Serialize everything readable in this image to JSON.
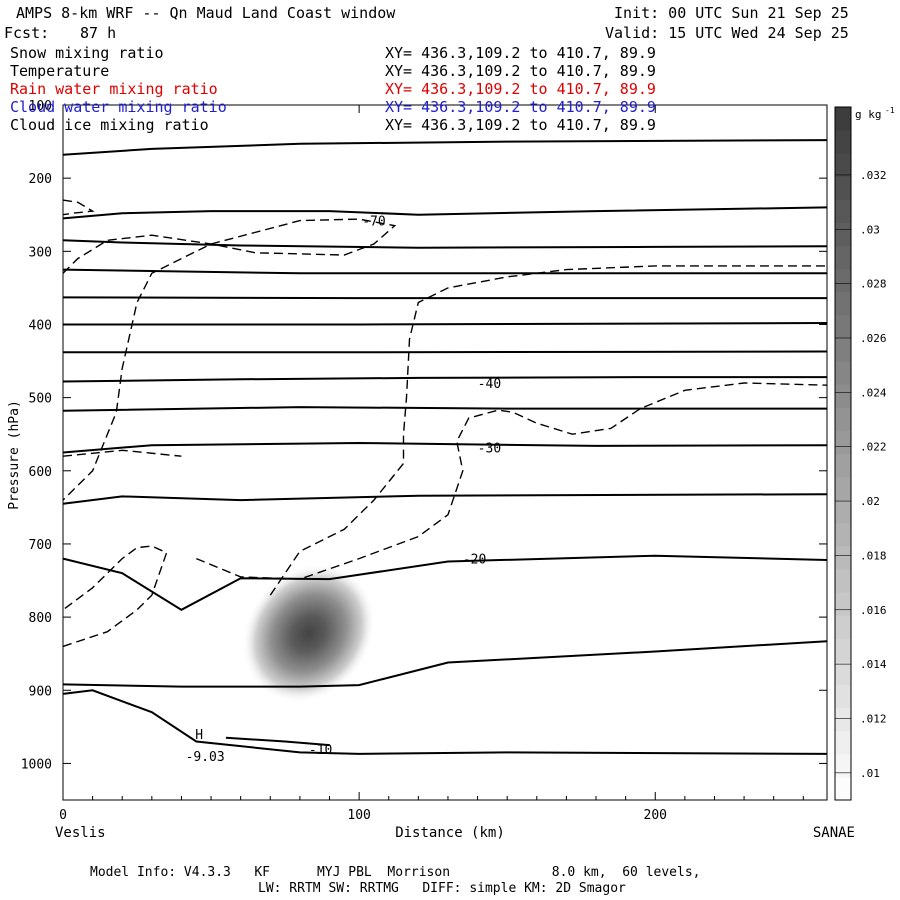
{
  "header": {
    "title": "AMPS 8-km WRF -- Qn Maud Land Coast window",
    "init": "Init: 00 UTC Sun 21 Sep 25",
    "fcst_label": "Fcst:",
    "fcst_value": "87 h",
    "valid": "Valid: 15 UTC Wed 24 Sep 25"
  },
  "fields": [
    {
      "name": "Snow mixing ratio",
      "xy": "XY= 436.3,109.2 to 410.7, 89.9",
      "color": "#000000"
    },
    {
      "name": "Temperature",
      "xy": "XY= 436.3,109.2 to 410.7, 89.9",
      "color": "#000000"
    },
    {
      "name": "Rain water mixing ratio",
      "xy": "XY= 436.3,109.2 to 410.7, 89.9",
      "color": "#e00000"
    },
    {
      "name": "Cloud water mixing ratio",
      "xy": "XY= 436.3,109.2 to 410.7, 89.9",
      "color": "#2020d0"
    },
    {
      "name": "Cloud ice mixing ratio",
      "xy": "XY= 436.3,109.2 to 410.7, 89.9",
      "color": "#000000"
    }
  ],
  "footer": {
    "line1": "Model Info: V4.3.3   KF      MYJ PBL  Morrison             8.0 km,  60 levels,",
    "line2": "LW: RRTM SW: RRTMG   DIFF: simple KM: 2D Smagor"
  },
  "chart_data": {
    "type": "contour",
    "xlabel": "Distance (km)",
    "ylabel": "Pressure (hPa)",
    "xlim": [
      0,
      258
    ],
    "ylim": [
      1050,
      100
    ],
    "x_ticks": [
      0,
      100,
      200
    ],
    "y_ticks": [
      100,
      200,
      300,
      400,
      500,
      600,
      700,
      800,
      900,
      1000
    ],
    "endpoints": {
      "left": "Veslis",
      "right": "SANAE"
    },
    "colorbar": {
      "units": "g kg",
      "units_exp": "-1",
      "ticks": [
        ".01",
        ".012",
        ".014",
        ".016",
        ".018",
        ".02",
        ".022",
        ".024",
        ".026",
        ".028",
        ".03",
        ".032"
      ],
      "min": 0.009,
      "max": 0.0345
    },
    "temperature_contours": [
      {
        "points": [
          [
            0,
            168
          ],
          [
            30,
            160
          ],
          [
            80,
            153
          ],
          [
            150,
            150
          ],
          [
            258,
            148
          ]
        ]
      },
      {
        "points": [
          [
            0,
            255
          ],
          [
            20,
            248
          ],
          [
            50,
            245
          ],
          [
            90,
            245
          ],
          [
            120,
            250
          ],
          [
            180,
            245
          ],
          [
            258,
            240
          ]
        ]
      },
      {
        "points": [
          [
            0,
            285
          ],
          [
            20,
            288
          ],
          [
            60,
            292
          ],
          [
            120,
            295
          ],
          [
            200,
            294
          ],
          [
            258,
            293
          ]
        ]
      },
      {
        "points": [
          [
            0,
            325
          ],
          [
            80,
            330
          ],
          [
            180,
            330
          ],
          [
            258,
            330
          ]
        ]
      },
      {
        "points": [
          [
            0,
            363
          ],
          [
            100,
            364
          ],
          [
            258,
            364
          ]
        ]
      },
      {
        "points": [
          [
            0,
            400
          ],
          [
            100,
            400
          ],
          [
            258,
            398
          ]
        ]
      },
      {
        "points": [
          [
            0,
            438
          ],
          [
            100,
            438
          ],
          [
            258,
            437
          ]
        ]
      },
      {
        "points": [
          [
            0,
            478
          ],
          [
            60,
            475
          ],
          [
            120,
            473
          ],
          [
            200,
            472
          ],
          [
            258,
            472
          ]
        ]
      },
      {
        "points": [
          [
            0,
            518
          ],
          [
            80,
            513
          ],
          [
            150,
            515
          ],
          [
            258,
            515
          ]
        ]
      },
      {
        "points": [
          [
            0,
            575
          ],
          [
            30,
            565
          ],
          [
            100,
            562
          ],
          [
            180,
            566
          ],
          [
            258,
            565
          ]
        ]
      },
      {
        "points": [
          [
            0,
            645
          ],
          [
            20,
            635
          ],
          [
            60,
            640
          ],
          [
            120,
            634
          ],
          [
            258,
            632
          ]
        ]
      },
      {
        "points": [
          [
            0,
            720
          ],
          [
            20,
            740
          ],
          [
            40,
            790
          ],
          [
            60,
            747
          ],
          [
            90,
            748
          ],
          [
            130,
            724
          ],
          [
            200,
            716
          ],
          [
            258,
            722
          ]
        ]
      },
      {
        "points": [
          [
            0,
            892
          ],
          [
            40,
            895
          ],
          [
            80,
            895
          ],
          [
            100,
            893
          ],
          [
            130,
            862
          ],
          [
            200,
            847
          ],
          [
            258,
            833
          ]
        ]
      },
      {
        "points": [
          [
            0,
            905
          ],
          [
            10,
            900
          ],
          [
            30,
            930
          ],
          [
            45,
            970
          ],
          [
            80,
            985
          ],
          [
            100,
            987
          ],
          [
            150,
            985
          ],
          [
            258,
            987
          ]
        ]
      },
      {
        "points": [
          [
            55,
            965
          ],
          [
            75,
            970
          ],
          [
            90,
            975
          ]
        ]
      }
    ],
    "temperature_labels": [
      {
        "text": "-70",
        "x": 105,
        "p": 258
      },
      {
        "text": "-40",
        "x": 144,
        "p": 480
      },
      {
        "text": "-30",
        "x": 144,
        "p": 568
      },
      {
        "text": "-20",
        "x": 139,
        "p": 720
      },
      {
        "text": "-10",
        "x": 87,
        "p": 980
      },
      {
        "text": "H",
        "x": 46,
        "p": 960
      },
      {
        "text": "-9.03",
        "x": 48,
        "p": 990
      }
    ],
    "ice_contours": [
      {
        "points": [
          [
            0,
            230
          ],
          [
            5,
            233
          ],
          [
            10,
            245
          ],
          [
            3,
            248
          ],
          [
            0,
            250
          ]
        ]
      },
      {
        "points": [
          [
            0,
            330
          ],
          [
            5,
            310
          ],
          [
            15,
            285
          ],
          [
            30,
            278
          ],
          [
            50,
            290
          ],
          [
            65,
            302
          ],
          [
            95,
            305
          ],
          [
            105,
            290
          ],
          [
            112,
            265
          ],
          [
            100,
            256
          ],
          [
            80,
            258
          ],
          [
            50,
            290
          ],
          [
            40,
            310
          ],
          [
            30,
            330
          ],
          [
            25,
            370
          ],
          [
            20,
            460
          ],
          [
            18,
            520
          ],
          [
            10,
            600
          ],
          [
            0,
            640
          ]
        ]
      },
      {
        "points": [
          [
            0,
            840
          ],
          [
            15,
            820
          ],
          [
            25,
            790
          ],
          [
            30,
            770
          ],
          [
            35,
            712
          ],
          [
            30,
            703
          ],
          [
            25,
            705
          ],
          [
            20,
            720
          ],
          [
            10,
            760
          ],
          [
            0,
            790
          ]
        ]
      },
      {
        "points": [
          [
            0,
            580
          ],
          [
            20,
            572
          ],
          [
            40,
            580
          ]
        ]
      },
      {
        "points": [
          [
            45,
            720
          ],
          [
            60,
            745
          ],
          [
            80,
            748
          ],
          [
            100,
            720
          ],
          [
            120,
            690
          ],
          [
            130,
            660
          ],
          [
            135,
            600
          ],
          [
            133,
            560
          ],
          [
            137,
            528
          ],
          [
            147,
            517
          ],
          [
            152,
            520
          ],
          [
            160,
            535
          ],
          [
            172,
            550
          ],
          [
            185,
            542
          ],
          [
            195,
            515
          ],
          [
            210,
            490
          ],
          [
            230,
            480
          ],
          [
            258,
            483
          ]
        ]
      },
      {
        "points": [
          [
            70,
            770
          ],
          [
            80,
            710
          ],
          [
            95,
            680
          ],
          [
            105,
            640
          ],
          [
            115,
            590
          ],
          [
            115,
            550
          ],
          [
            116,
            500
          ],
          [
            117,
            420
          ],
          [
            120,
            370
          ],
          [
            130,
            350
          ],
          [
            150,
            335
          ],
          [
            170,
            325
          ],
          [
            200,
            320
          ],
          [
            258,
            320
          ]
        ]
      }
    ],
    "snow_blob": {
      "center_x": 83,
      "center_p": 822,
      "peak": 0.034
    }
  }
}
